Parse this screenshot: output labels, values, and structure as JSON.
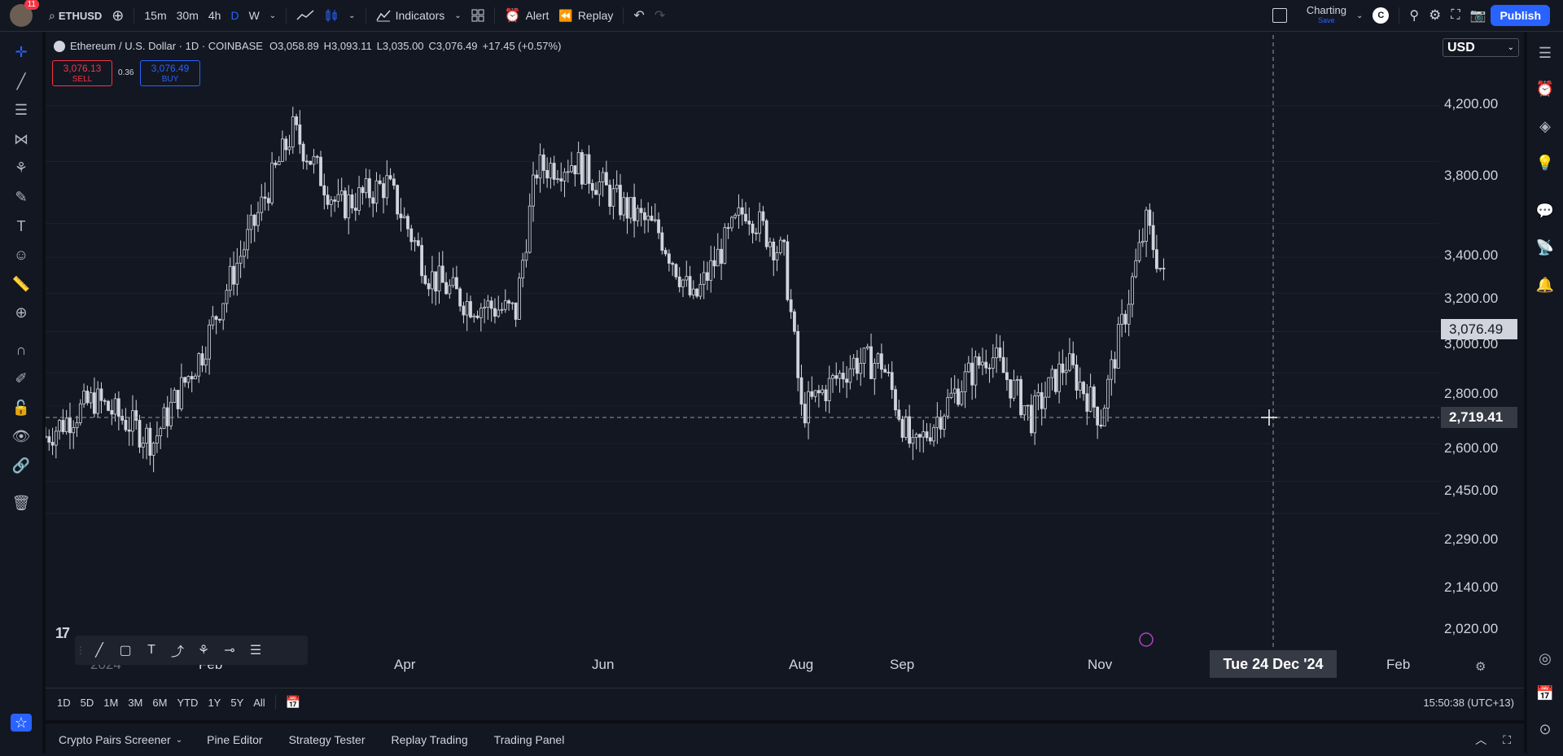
{
  "topbar": {
    "avatar_badge": "11",
    "symbol": "ETHUSD",
    "intervals": [
      "15m",
      "30m",
      "4h",
      "D",
      "W"
    ],
    "active_interval": "D",
    "indicators_label": "Indicators",
    "alert_label": "Alert",
    "replay_label": "Replay",
    "layout_name": "Charting",
    "layout_save": "Save",
    "layout_avatar": "C",
    "publish_label": "Publish"
  },
  "legend": {
    "title": "Ethereum / U.S. Dollar · 1D · COINBASE",
    "o": "O3,058.89",
    "h": "H3,093.11",
    "l": "L3,035.00",
    "c": "C3,076.49",
    "change": "+17.45 (+0.57%)",
    "sell_price": "3,076.13",
    "sell_label": "SELL",
    "spread": "0.36",
    "buy_price": "3,076.49",
    "buy_label": "BUY"
  },
  "price_axis": {
    "currency": "USD",
    "labels": [
      "4,200.00",
      "3,800.00",
      "3,400.00",
      "3,200.00",
      "3,000.00",
      "2,800.00",
      "2,600.00",
      "2,450.00",
      "2,290.00",
      "2,140.00",
      "2,020.00"
    ],
    "last_price": "3,076.49",
    "crosshair_price": "2,719.41"
  },
  "time_axis": {
    "labels": [
      "2024",
      "Feb",
      "Apr",
      "Jun",
      "Aug",
      "Sep",
      "Nov",
      "Feb"
    ],
    "crosshair_time": "Tue 24 Dec '24"
  },
  "chart_data": {
    "type": "candlestick",
    "symbol": "ETHUSD",
    "interval": "1D",
    "exchange": "COINBASE",
    "y_scale": "log",
    "ylim": [
      1950,
      4500
    ],
    "points": [
      [
        "2024-01-01",
        2320
      ],
      [
        "2024-01-15",
        2480
      ],
      [
        "2024-02-01",
        2300
      ],
      [
        "2024-02-15",
        2700
      ],
      [
        "2024-03-01",
        3400
      ],
      [
        "2024-03-12",
        4020
      ],
      [
        "2024-03-25",
        3500
      ],
      [
        "2024-04-08",
        3650
      ],
      [
        "2024-04-20",
        3100
      ],
      [
        "2024-05-01",
        2950
      ],
      [
        "2024-05-15",
        2900
      ],
      [
        "2024-05-21",
        3750
      ],
      [
        "2024-06-01",
        3800
      ],
      [
        "2024-06-15",
        3500
      ],
      [
        "2024-06-25",
        3350
      ],
      [
        "2024-07-05",
        2950
      ],
      [
        "2024-07-20",
        3500
      ],
      [
        "2024-07-31",
        3200
      ],
      [
        "2024-08-05",
        2420
      ],
      [
        "2024-08-20",
        2650
      ],
      [
        "2024-08-28",
        2650
      ],
      [
        "2024-09-06",
        2250
      ],
      [
        "2024-09-20",
        2550
      ],
      [
        "2024-09-28",
        2700
      ],
      [
        "2024-10-10",
        2400
      ],
      [
        "2024-10-20",
        2650
      ],
      [
        "2024-10-30",
        2400
      ],
      [
        "2024-11-06",
        2900
      ],
      [
        "2024-11-12",
        3400
      ],
      [
        "2024-11-17",
        3076
      ]
    ]
  },
  "range_buttons": [
    "1D",
    "5D",
    "1M",
    "3M",
    "6M",
    "YTD",
    "1Y",
    "5Y",
    "All"
  ],
  "clock": "15:50:38 (UTC+13)",
  "bottom_tabs": [
    "Crypto Pairs Screener",
    "Pine Editor",
    "Strategy Tester",
    "Replay Trading",
    "Trading Panel"
  ]
}
